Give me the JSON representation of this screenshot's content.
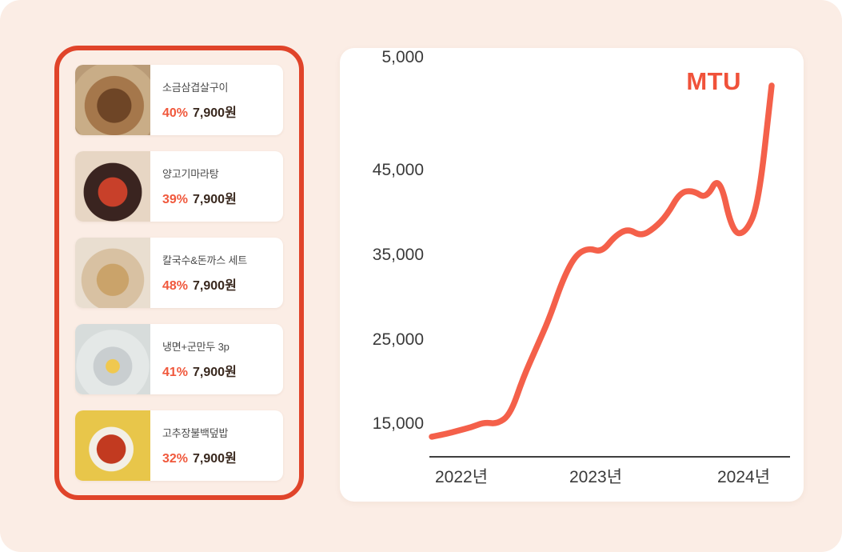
{
  "app": {
    "background_color": "#FBEDE5",
    "accent_color": "#E0442A"
  },
  "menu_panel": {
    "items": [
      {
        "name": "소금삼겹살구이",
        "discount": "40%",
        "price": "7,900원"
      },
      {
        "name": "양고기마라탕",
        "discount": "39%",
        "price": "7,900원"
      },
      {
        "name": "칼국수&돈까스 세트",
        "discount": "48%",
        "price": "7,900원"
      },
      {
        "name": "냉면+군만두 3p",
        "discount": "41%",
        "price": "7,900원"
      },
      {
        "name": "고추장불백덮밥",
        "discount": "32%",
        "price": "7,900원"
      }
    ]
  },
  "chart_data": {
    "type": "line",
    "title": "MTU",
    "line_color": "#F4604A",
    "legend_position": "top-right",
    "grid": false,
    "x_tick_labels": [
      "2022년",
      "2023년",
      "2024년"
    ],
    "y_tick_labels": [
      "45,000",
      "35,000",
      "25,000",
      "15,000",
      "5,000"
    ],
    "y_ticks": [
      45000,
      35000,
      25000,
      15000,
      5000
    ],
    "ylim": [
      0,
      47000
    ],
    "x": [
      "2022-01",
      "2022-02",
      "2022-03",
      "2022-04",
      "2022-05",
      "2022-06",
      "2022-07",
      "2022-08",
      "2022-09",
      "2022-10",
      "2022-11",
      "2022-12",
      "2023-01",
      "2023-02",
      "2023-03",
      "2023-04",
      "2023-05",
      "2023-06",
      "2023-07",
      "2023-08",
      "2023-09",
      "2023-10",
      "2023-11",
      "2023-12",
      "2024-01",
      "2024-02",
      "2024-03"
    ],
    "series": [
      {
        "name": "MTU",
        "values": [
          3500,
          3800,
          4200,
          4600,
          5200,
          5000,
          6100,
          10500,
          14000,
          17500,
          22000,
          25000,
          25800,
          25300,
          27200,
          28100,
          27200,
          28100,
          29700,
          32400,
          32600,
          31600,
          34500,
          27600,
          27500,
          31000,
          45000
        ]
      }
    ]
  }
}
